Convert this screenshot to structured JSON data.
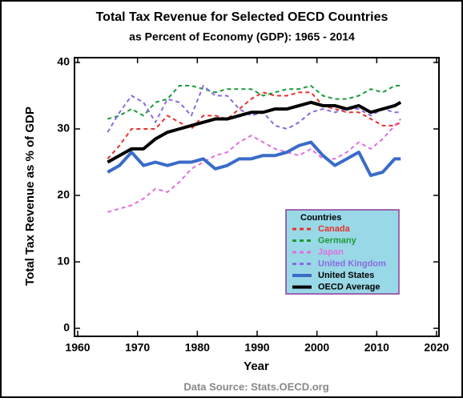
{
  "chart_data": {
    "type": "line",
    "title": "Total Tax Revenue for Selected OECD Countries",
    "subtitle": "as Percent of Economy (GDP): 1965 - 2014",
    "x_label": "Year",
    "y_label": "Total Tax Revenue as % of GDP",
    "source": "Data Source: Stats.OECD.org",
    "legend_title": "Countries",
    "x": [
      1965,
      1967,
      1969,
      1971,
      1973,
      1975,
      1977,
      1979,
      1981,
      1983,
      1985,
      1987,
      1989,
      1991,
      1993,
      1995,
      1997,
      1999,
      2001,
      2003,
      2005,
      2007,
      2009,
      2011,
      2013,
      2014
    ],
    "series": [
      {
        "name": "Canada",
        "color": "#e8322b",
        "dash": true,
        "values": [
          25.5,
          27.5,
          30,
          30,
          30,
          32,
          31,
          30,
          32,
          32,
          31.5,
          33,
          34.5,
          35.5,
          35,
          35,
          35.5,
          35.5,
          33.5,
          33,
          32.5,
          32.5,
          31.5,
          30.5,
          30.5,
          31
        ]
      },
      {
        "name": "Germany",
        "color": "#1a9a3a",
        "dash": true,
        "values": [
          31.5,
          32,
          33,
          32,
          34,
          34.5,
          36.5,
          36.5,
          36,
          35.5,
          36,
          36,
          36,
          35,
          35.5,
          36,
          36,
          36.5,
          35,
          34.5,
          34.5,
          35,
          36,
          35.5,
          36.5,
          36.5
        ]
      },
      {
        "name": "Japan",
        "color": "#e070e0",
        "dash": true,
        "values": [
          17.5,
          18,
          18.5,
          19.5,
          21,
          20.5,
          22,
          24,
          25,
          26,
          26.5,
          28,
          29,
          28,
          27,
          26.5,
          26,
          27,
          25.5,
          25.5,
          26.5,
          28,
          27,
          28.5,
          30.5,
          31.5
        ]
      },
      {
        "name": "United Kingdom",
        "color": "#8a6ae0",
        "dash": true,
        "values": [
          29.5,
          32.5,
          35,
          34,
          31,
          34.5,
          34,
          32,
          36.5,
          35,
          35,
          33,
          32,
          32.5,
          30.5,
          30,
          31,
          32.5,
          33,
          32.5,
          33,
          33,
          32,
          33,
          32.5,
          32.5
        ]
      },
      {
        "name": "United States",
        "color": "#3a6bc8",
        "dash": false,
        "values": [
          23.5,
          24.5,
          26.5,
          24.5,
          25,
          24.5,
          25,
          25,
          25.5,
          24,
          24.5,
          25.5,
          25.5,
          26,
          26,
          26.5,
          27.5,
          28,
          26,
          24.5,
          25.5,
          26.5,
          23,
          23.5,
          25.5,
          25.5
        ]
      },
      {
        "name": "OECD Average",
        "color": "#000000",
        "dash": false,
        "values": [
          25,
          26,
          27,
          27,
          28.5,
          29.5,
          30,
          30.5,
          31,
          31.5,
          31.5,
          32,
          32.5,
          32.5,
          33,
          33,
          33.5,
          34,
          33.5,
          33.5,
          33,
          33.5,
          32.5,
          33,
          33.5,
          34
        ]
      }
    ],
    "xlim": [
      1960,
      2020
    ],
    "xticks": [
      1960,
      1970,
      1980,
      1990,
      2000,
      2010,
      2020
    ],
    "ylim": [
      0,
      40
    ],
    "yticks": [
      0,
      10,
      20,
      30,
      40
    ],
    "grid": false
  }
}
